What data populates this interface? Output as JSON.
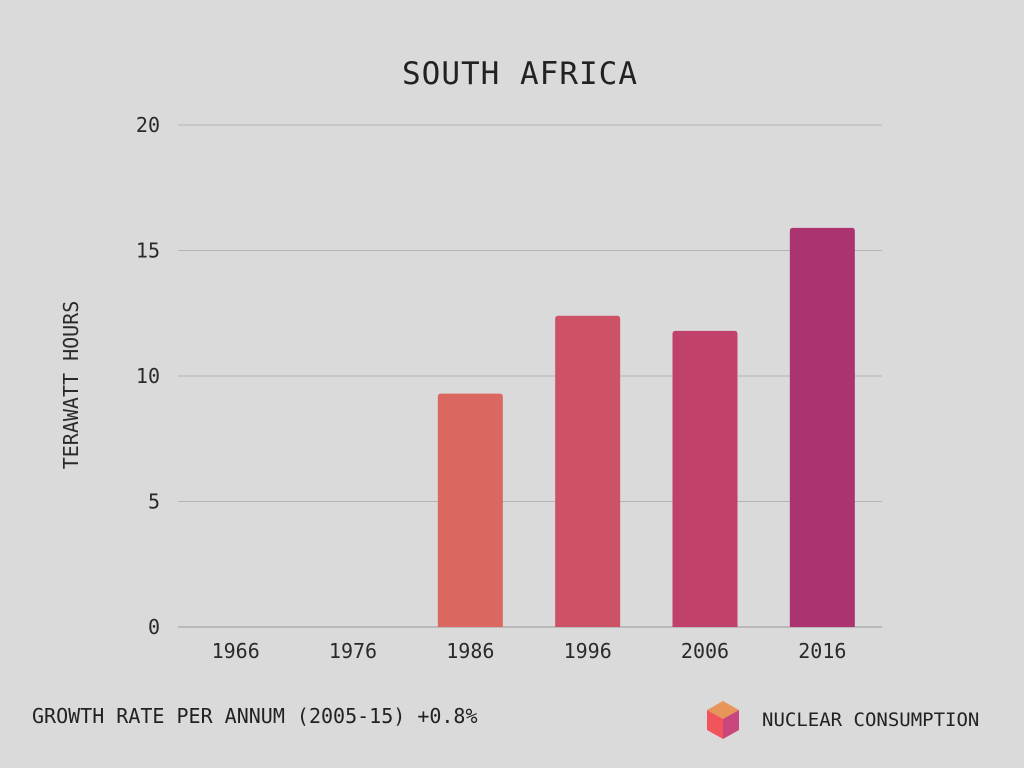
{
  "chart_data": {
    "type": "bar",
    "title": "SOUTH AFRICA",
    "ylabel": "TERAWATT HOURS",
    "categories": [
      "1966",
      "1976",
      "1986",
      "1996",
      "2006",
      "2016"
    ],
    "values": [
      0,
      0,
      9.3,
      12.4,
      11.8,
      15.9
    ],
    "colors": [
      "#da6860",
      "#da6860",
      "#da6860",
      "#cd5265",
      "#c0426b",
      "#aa3370"
    ],
    "ylim": [
      0,
      20
    ],
    "yticks": [
      0,
      5,
      10,
      15,
      20
    ],
    "grid": true,
    "legend": "bottom-right"
  },
  "footer": {
    "growth_text": "GROWTH RATE PER ANNUM (2005-15) +0.8%"
  },
  "legend": {
    "label": "NUCLEAR CONSUMPTION",
    "icon": "cube-icon",
    "icon_colors": [
      "#e8955a",
      "#f2545b",
      "#c8467c"
    ]
  }
}
